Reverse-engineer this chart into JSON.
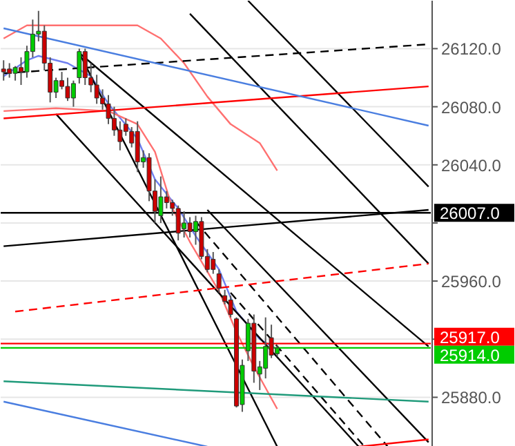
{
  "chart_data": {
    "type": "candlestick",
    "ylim": [
      25846,
      26153
    ],
    "yticks": [
      {
        "value": 25880,
        "label": "25880.0"
      },
      {
        "value": 25920,
        "label": null
      },
      {
        "value": 25960,
        "label": "25960.0"
      },
      {
        "value": 26000,
        "label": null
      },
      {
        "value": 26040,
        "label": "26040.0"
      },
      {
        "value": 26080,
        "label": "26080.0"
      },
      {
        "value": 26120,
        "label": "26120.0"
      }
    ],
    "tick_labels": "y",
    "grid": "y",
    "categories": [
      null,
      null,
      null,
      null,
      null,
      null,
      null,
      null,
      null,
      null,
      null,
      null,
      null,
      null,
      null,
      null,
      null,
      null,
      null,
      null,
      null,
      null,
      null,
      null,
      null,
      null,
      null,
      null,
      null,
      null,
      null,
      null,
      null,
      null,
      null,
      null,
      null,
      null,
      null,
      null,
      null,
      null,
      null,
      null,
      null,
      null,
      null,
      null,
      null,
      null,
      null,
      null,
      null,
      null,
      null,
      null,
      null,
      null,
      null,
      null,
      null,
      null,
      null,
      null,
      null,
      null,
      null,
      null,
      null,
      null,
      null,
      null,
      null,
      null
    ],
    "series": [
      {
        "ohlc": [
          [
            26106,
            26112,
            26098,
            26104
          ],
          [
            26106,
            26110,
            26100,
            26103
          ],
          [
            26103,
            26108,
            26098,
            26107
          ],
          [
            26107,
            26114,
            26095,
            26104
          ],
          [
            26104,
            26122,
            26100,
            26118
          ],
          [
            26118,
            26140,
            26114,
            26130
          ],
          [
            26130,
            26146,
            26125,
            26132
          ],
          [
            26132,
            26136,
            26105,
            26110
          ],
          [
            26110,
            26114,
            26083,
            26090
          ],
          [
            26090,
            26100,
            26086,
            26098
          ],
          [
            26098,
            26104,
            26092,
            26094
          ],
          [
            26094,
            26100,
            26084,
            26086
          ],
          [
            26086,
            26098,
            26080,
            26096
          ],
          [
            26100,
            26120,
            26096,
            26118
          ],
          [
            26118,
            26120,
            26095,
            26100
          ],
          [
            26100,
            26110,
            26090,
            26095
          ],
          [
            26095,
            26102,
            26082,
            26086
          ],
          [
            26086,
            26092,
            26078,
            26082
          ],
          [
            26082,
            26088,
            26068,
            26072
          ],
          [
            26072,
            26080,
            26060,
            26064
          ],
          [
            26064,
            26070,
            26050,
            26056
          ],
          [
            26068,
            26072,
            26060,
            26063
          ],
          [
            26063,
            26066,
            26052,
            26055
          ],
          [
            26063,
            26070,
            26035,
            26042
          ],
          [
            26042,
            26050,
            26038,
            26045
          ],
          [
            26045,
            26048,
            26015,
            26022
          ],
          [
            26022,
            26030,
            26000,
            26008
          ],
          [
            26005,
            26032,
            26000,
            26018
          ],
          [
            26018,
            26022,
            26010,
            26014
          ],
          [
            26014,
            26016,
            26005,
            26010
          ],
          [
            26010,
            26012,
            25988,
            25993
          ],
          [
            25996,
            26008,
            25990,
            26000
          ],
          [
            26000,
            26004,
            25990,
            25994
          ],
          [
            25994,
            26005,
            25985,
            26001
          ],
          [
            26001,
            26004,
            25975,
            25977
          ],
          [
            25977,
            25982,
            25966,
            25968
          ],
          [
            25975,
            25980,
            25965,
            25968
          ],
          [
            25965,
            25968,
            25952,
            25955
          ],
          [
            25950,
            25954,
            25944,
            25946
          ],
          [
            25947,
            25950,
            25935,
            25937
          ],
          [
            25934,
            25935,
            25873,
            25874
          ],
          [
            25875,
            25906,
            25870,
            25902
          ],
          [
            25912,
            25934,
            25905,
            25931
          ],
          [
            25931,
            25937,
            25890,
            25898
          ],
          [
            25896,
            25905,
            25885,
            25901
          ],
          [
            25900,
            25935,
            25893,
            25915
          ],
          [
            25921,
            25930,
            25907,
            25909
          ],
          [
            25910,
            25916,
            25908,
            25914
          ],
          null,
          null,
          null,
          null,
          null,
          null,
          null,
          null,
          null,
          null,
          null,
          null,
          null,
          null,
          null,
          null,
          null,
          null,
          null,
          null,
          null,
          null,
          null,
          null,
          null,
          null
        ],
        "colors": [
          "#cc0000",
          "#cc0000",
          "#00cc00",
          "#cc0000",
          "#00cc00",
          "#00cc00",
          "#00cc00",
          "#cc0000",
          "#cc0000",
          "#00cc00",
          "#cc0000",
          "#cc0000",
          "#00cc00",
          "#00cc00",
          "#cc0000",
          "#cc0000",
          "#cc0000",
          "#cc0000",
          "#cc0000",
          "#cc0000",
          "#cc0000",
          "#cc0000",
          "#cc0000",
          "#cc0000",
          "#00cc00",
          "#cc0000",
          "#cc0000",
          "#00cc00",
          "#cc0000",
          "#cc0000",
          "#cc0000",
          "#00cc00",
          "#cc0000",
          "#00cc00",
          "#cc0000",
          "#cc0000",
          "#cc0000",
          "#cc0000",
          "#cc0000",
          "#cc0000",
          "#cc0000",
          "#00cc00",
          "#00cc00",
          "#cc0000",
          "#00cc00",
          "#00cc00",
          "#cc0000",
          "#00cc00",
          null,
          null,
          null,
          null,
          null,
          null,
          null,
          null,
          null,
          null,
          null,
          null,
          null,
          null,
          null,
          null,
          null,
          null,
          null,
          null,
          null,
          null,
          null,
          null,
          null,
          null
        ]
      },
      {
        "type": "line",
        "color": "#6f7ff0",
        "values": [
          26101,
          null,
          null,
          null,
          26112,
          null,
          26115,
          null,
          null,
          null,
          null,
          26110,
          null,
          null,
          null,
          26101,
          null,
          null,
          26082,
          null,
          null,
          null,
          null,
          26058,
          null,
          null,
          26030,
          null,
          null,
          null,
          26010,
          null,
          null,
          25991,
          null,
          null,
          null,
          25968,
          null,
          null,
          25939,
          null,
          null,
          null,
          25920,
          null,
          null,
          25913,
          null,
          null,
          null,
          null,
          null,
          null,
          null,
          null,
          null,
          null,
          null,
          null,
          null,
          null,
          null,
          null,
          null,
          null,
          null,
          null,
          null,
          null,
          null,
          null,
          null,
          null
        ]
      },
      {
        "type": "line",
        "color": "#ff7070",
        "values": [
          26127,
          null,
          null,
          null,
          26136,
          null,
          null,
          null,
          null,
          null,
          null,
          null,
          null,
          26136,
          null,
          null,
          null,
          null,
          null,
          null,
          null,
          null,
          null,
          26136,
          null,
          null,
          null,
          26127,
          null,
          null,
          null,
          26110,
          null,
          null,
          null,
          26087,
          null,
          null,
          null,
          26068,
          null,
          null,
          null,
          null,
          26055,
          null,
          null,
          26036,
          null,
          null,
          null,
          null,
          null,
          null,
          null,
          null,
          null,
          null,
          null,
          null,
          null,
          null,
          null,
          null,
          null,
          null,
          null,
          null,
          null,
          null,
          null,
          null,
          null,
          null
        ]
      },
      {
        "type": "line",
        "color": "#ff7070",
        "values": [
          26077,
          null,
          null,
          null,
          null,
          null,
          null,
          null,
          null,
          26079,
          null,
          null,
          null,
          null,
          null,
          null,
          null,
          null,
          26077,
          null,
          null,
          null,
          null,
          26068,
          null,
          null,
          26049,
          null,
          null,
          26010,
          null,
          null,
          25987,
          null,
          null,
          null,
          null,
          25953,
          null,
          null,
          25925,
          null,
          null,
          25901,
          null,
          null,
          null,
          25872,
          null,
          null,
          null,
          null,
          null,
          null,
          null,
          null,
          null,
          null,
          null,
          null,
          null,
          null,
          null,
          null,
          null,
          null,
          null,
          null,
          null,
          null,
          null,
          null,
          null,
          null
        ]
      },
      {
        "type": "line",
        "color": "#000000",
        "values": [
          null,
          null,
          null,
          null,
          null,
          null,
          null,
          null,
          null,
          null,
          null,
          null,
          null,
          null,
          null,
          null,
          null,
          null,
          null,
          null,
          null,
          null,
          null,
          null,
          null,
          null,
          null,
          null,
          null,
          null,
          null,
          null,
          null,
          null,
          null,
          null,
          null,
          null,
          null,
          null,
          null,
          null,
          26153,
          null,
          null,
          null,
          null,
          null,
          null,
          null,
          null,
          null,
          null,
          null,
          null,
          null,
          null,
          null,
          null,
          null,
          null,
          null,
          null,
          null,
          null,
          null,
          null,
          null,
          null,
          null,
          null,
          null,
          null,
          26025
        ]
      },
      {
        "type": "line",
        "color": "#000000",
        "values": [
          null,
          null,
          null,
          null,
          null,
          null,
          null,
          null,
          null,
          null,
          null,
          null,
          null,
          null,
          null,
          null,
          null,
          null,
          null,
          null,
          null,
          null,
          null,
          null,
          null,
          null,
          null,
          null,
          null,
          null,
          null,
          null,
          26144,
          null,
          null,
          null,
          null,
          null,
          null,
          null,
          null,
          null,
          null,
          null,
          null,
          null,
          null,
          null,
          null,
          null,
          null,
          null,
          null,
          null,
          null,
          null,
          null,
          null,
          null,
          null,
          null,
          null,
          null,
          null,
          null,
          null,
          null,
          null,
          null,
          null,
          null,
          null,
          null,
          25972
        ]
      },
      {
        "type": "line",
        "color": "#000000",
        "values": [
          null,
          null,
          null,
          null,
          null,
          null,
          null,
          null,
          null,
          null,
          null,
          null,
          null,
          26117,
          null,
          null,
          null,
          null,
          null,
          null,
          null,
          null,
          null,
          null,
          null,
          null,
          null,
          null,
          null,
          null,
          null,
          null,
          null,
          null,
          null,
          null,
          null,
          null,
          null,
          null,
          null,
          null,
          null,
          null,
          null,
          null,
          null,
          null,
          null,
          null,
          null,
          null,
          null,
          null,
          null,
          null,
          null,
          null,
          null,
          null,
          null,
          null,
          null,
          null,
          null,
          null,
          null,
          null,
          null,
          null,
          null,
          null,
          null,
          25915
        ]
      },
      {
        "type": "line",
        "color": "#000000",
        "values": [
          null,
          null,
          null,
          null,
          null,
          null,
          null,
          null,
          null,
          null,
          null,
          null,
          null,
          null,
          null,
          null,
          null,
          null,
          null,
          null,
          null,
          null,
          null,
          null,
          null,
          null,
          null,
          null,
          null,
          null,
          null,
          null,
          null,
          null,
          null,
          26009,
          null,
          null,
          null,
          null,
          null,
          null,
          null,
          null,
          null,
          null,
          null,
          null,
          null,
          null,
          null,
          null,
          null,
          null,
          null,
          null,
          null,
          null,
          null,
          null,
          null,
          null,
          null,
          null,
          null,
          null,
          null,
          null,
          null,
          null,
          null,
          null,
          null,
          25849
        ]
      },
      {
        "type": "line",
        "color": "#000000",
        "values": [
          null,
          null,
          null,
          null,
          null,
          null,
          null,
          null,
          null,
          26075,
          null,
          null,
          null,
          null,
          null,
          null,
          null,
          null,
          null,
          null,
          null,
          null,
          null,
          null,
          null,
          null,
          null,
          null,
          null,
          null,
          null,
          null,
          null,
          null,
          null,
          null,
          null,
          null,
          null,
          null,
          null,
          null,
          null,
          null,
          null,
          null,
          null,
          null,
          null,
          null,
          null,
          null,
          null,
          null,
          null,
          null,
          null,
          null,
          null,
          null,
          null,
          25846,
          null,
          null,
          null,
          null,
          null,
          null,
          null,
          null,
          null,
          null,
          null,
          null
        ]
      },
      {
        "type": "line",
        "color": "#000000",
        "values": [
          null,
          null,
          null,
          null,
          null,
          null,
          null,
          null,
          null,
          null,
          null,
          null,
          null,
          26117,
          null,
          null,
          null,
          null,
          null,
          null,
          null,
          null,
          null,
          null,
          null,
          null,
          null,
          null,
          null,
          null,
          null,
          null,
          null,
          null,
          null,
          null,
          null,
          null,
          null,
          null,
          null,
          null,
          null,
          null,
          null,
          null,
          null,
          25846,
          null,
          null,
          null,
          null,
          null,
          null,
          null,
          null,
          null,
          null,
          null,
          null,
          null,
          null,
          null,
          null,
          null,
          null,
          null,
          null,
          null,
          null,
          null,
          null,
          null,
          null
        ]
      },
      {
        "type": "line",
        "color": "#000000",
        "values": [
          25984,
          null,
          null,
          null,
          null,
          null,
          null,
          null,
          null,
          null,
          null,
          null,
          null,
          null,
          null,
          null,
          null,
          null,
          null,
          null,
          null,
          null,
          null,
          null,
          null,
          null,
          null,
          null,
          null,
          null,
          null,
          null,
          null,
          null,
          null,
          null,
          null,
          null,
          null,
          null,
          null,
          null,
          null,
          null,
          null,
          null,
          null,
          null,
          null,
          null,
          null,
          null,
          null,
          null,
          null,
          null,
          null,
          null,
          null,
          null,
          null,
          null,
          null,
          null,
          null,
          null,
          null,
          null,
          null,
          null,
          null,
          null,
          null,
          26009
        ]
      },
      {
        "type": "line",
        "color": "#000000",
        "line_style": "dashed",
        "values": [
          26103,
          null,
          null,
          null,
          null,
          null,
          null,
          null,
          null,
          null,
          null,
          null,
          null,
          null,
          null,
          null,
          null,
          null,
          null,
          null,
          null,
          null,
          null,
          null,
          null,
          null,
          null,
          null,
          null,
          null,
          null,
          null,
          null,
          null,
          null,
          null,
          null,
          null,
          null,
          null,
          null,
          null,
          null,
          null,
          null,
          null,
          null,
          null,
          null,
          null,
          null,
          null,
          null,
          null,
          null,
          null,
          null,
          null,
          null,
          null,
          null,
          null,
          null,
          null,
          null,
          null,
          null,
          null,
          null,
          null,
          null,
          null,
          null,
          26123
        ]
      },
      {
        "type": "line",
        "color": "#000000",
        "line_style": "dashed",
        "values": [
          null,
          null,
          null,
          null,
          null,
          null,
          null,
          null,
          null,
          null,
          null,
          null,
          null,
          null,
          null,
          null,
          null,
          null,
          null,
          null,
          null,
          null,
          null,
          null,
          null,
          null,
          null,
          null,
          null,
          null,
          null,
          null,
          null,
          26001,
          null,
          null,
          null,
          null,
          null,
          null,
          null,
          null,
          null,
          null,
          null,
          null,
          null,
          null,
          null,
          null,
          null,
          null,
          null,
          null,
          null,
          null,
          null,
          null,
          null,
          null,
          null,
          null,
          null,
          null,
          null,
          null,
          25846,
          null,
          null,
          null,
          null,
          null,
          null,
          null
        ]
      },
      {
        "type": "line",
        "color": "#000000",
        "line_style": "dashed",
        "values": [
          null,
          null,
          null,
          null,
          null,
          null,
          null,
          null,
          null,
          null,
          null,
          null,
          null,
          null,
          null,
          null,
          null,
          null,
          null,
          null,
          null,
          null,
          null,
          null,
          null,
          null,
          null,
          null,
          null,
          null,
          null,
          null,
          null,
          null,
          null,
          null,
          null,
          null,
          null,
          25952,
          null,
          null,
          null,
          null,
          null,
          null,
          null,
          null,
          null,
          null,
          null,
          null,
          null,
          null,
          null,
          null,
          null,
          null,
          null,
          null,
          null,
          null,
          25846,
          null,
          null,
          null,
          null,
          null,
          null,
          null,
          null,
          null,
          null,
          null
        ]
      },
      {
        "type": "line",
        "color": "#ff0000",
        "values": [
          26072,
          null,
          null,
          null,
          null,
          null,
          null,
          null,
          null,
          null,
          null,
          null,
          null,
          null,
          null,
          null,
          null,
          null,
          null,
          null,
          null,
          null,
          null,
          null,
          null,
          null,
          null,
          null,
          null,
          null,
          null,
          null,
          null,
          null,
          null,
          null,
          null,
          null,
          null,
          null,
          null,
          null,
          null,
          null,
          null,
          null,
          null,
          null,
          null,
          null,
          null,
          null,
          null,
          null,
          null,
          null,
          null,
          null,
          null,
          null,
          null,
          null,
          null,
          null,
          null,
          null,
          null,
          null,
          null,
          null,
          null,
          null,
          null,
          26094
        ]
      },
      {
        "type": "line",
        "color": "#ff0000",
        "line_style": "dashed",
        "values": [
          null,
          null,
          25939,
          null,
          null,
          null,
          null,
          null,
          null,
          null,
          null,
          null,
          null,
          null,
          null,
          null,
          null,
          null,
          null,
          null,
          null,
          null,
          null,
          null,
          null,
          null,
          null,
          null,
          null,
          null,
          null,
          null,
          null,
          null,
          null,
          null,
          null,
          null,
          null,
          null,
          null,
          null,
          null,
          null,
          null,
          null,
          null,
          null,
          null,
          null,
          null,
          null,
          null,
          null,
          null,
          null,
          null,
          null,
          null,
          null,
          null,
          null,
          null,
          null,
          null,
          null,
          null,
          null,
          null,
          null,
          null,
          null,
          null,
          25972
        ]
      },
      {
        "type": "line",
        "color": "#4a7ee0",
        "values": [
          26134,
          null,
          null,
          null,
          null,
          null,
          null,
          null,
          null,
          null,
          null,
          null,
          null,
          null,
          null,
          null,
          null,
          null,
          null,
          null,
          null,
          null,
          null,
          null,
          null,
          null,
          null,
          null,
          null,
          null,
          null,
          null,
          null,
          null,
          null,
          null,
          null,
          null,
          null,
          null,
          null,
          null,
          null,
          null,
          null,
          null,
          null,
          null,
          null,
          null,
          null,
          null,
          null,
          null,
          null,
          null,
          null,
          null,
          null,
          null,
          null,
          null,
          null,
          null,
          null,
          null,
          null,
          null,
          null,
          null,
          null,
          null,
          null,
          26067
        ]
      },
      {
        "type": "line",
        "color": "#4a7ee0",
        "values": [
          25877,
          null,
          null,
          null,
          null,
          null,
          null,
          null,
          null,
          null,
          null,
          null,
          null,
          null,
          null,
          null,
          null,
          null,
          null,
          null,
          null,
          null,
          null,
          null,
          null,
          null,
          null,
          null,
          null,
          null,
          null,
          null,
          null,
          null,
          null,
          25846,
          null,
          null,
          null,
          null,
          null,
          null,
          null,
          null,
          null,
          null,
          null,
          null,
          null,
          null,
          null,
          null,
          null,
          null,
          null,
          null,
          null,
          null,
          null,
          null,
          null,
          null,
          null,
          null,
          null,
          null,
          null,
          null,
          null,
          null,
          null,
          null,
          null,
          null
        ]
      },
      {
        "type": "line",
        "color": "#1f9a7a",
        "values": [
          25891,
          null,
          null,
          null,
          null,
          null,
          null,
          null,
          null,
          null,
          null,
          null,
          null,
          null,
          null,
          null,
          null,
          null,
          null,
          null,
          null,
          null,
          null,
          null,
          null,
          null,
          null,
          null,
          null,
          null,
          null,
          null,
          null,
          null,
          null,
          null,
          null,
          null,
          null,
          null,
          null,
          null,
          null,
          null,
          null,
          null,
          null,
          null,
          null,
          null,
          null,
          null,
          null,
          null,
          null,
          null,
          null,
          null,
          null,
          null,
          null,
          null,
          null,
          null,
          null,
          null,
          null,
          null,
          null,
          null,
          null,
          null,
          null,
          25877
        ]
      },
      {
        "type": "line",
        "color": "#ff0000",
        "values": [
          null,
          null,
          null,
          null,
          null,
          null,
          null,
          null,
          null,
          null,
          null,
          null,
          null,
          null,
          null,
          null,
          null,
          null,
          null,
          null,
          null,
          null,
          null,
          null,
          null,
          null,
          null,
          null,
          null,
          null,
          null,
          null,
          null,
          null,
          null,
          null,
          null,
          null,
          null,
          null,
          null,
          null,
          null,
          null,
          null,
          null,
          null,
          null,
          null,
          null,
          null,
          null,
          null,
          null,
          null,
          null,
          null,
          null,
          null,
          null,
          null,
          25846,
          null,
          null,
          null,
          null,
          null,
          null,
          null,
          null,
          null,
          null,
          null,
          25851
        ]
      }
    ],
    "ref_lines": [
      {
        "axis": "y",
        "value": 26007,
        "label": "26007.0",
        "color": "#000000"
      },
      {
        "axis": "y",
        "value": 25917,
        "label": "25917.0",
        "color": "#ff0000"
      },
      {
        "axis": "y",
        "value": 25914,
        "label": "25914.0",
        "color": "#00cc00"
      }
    ]
  }
}
